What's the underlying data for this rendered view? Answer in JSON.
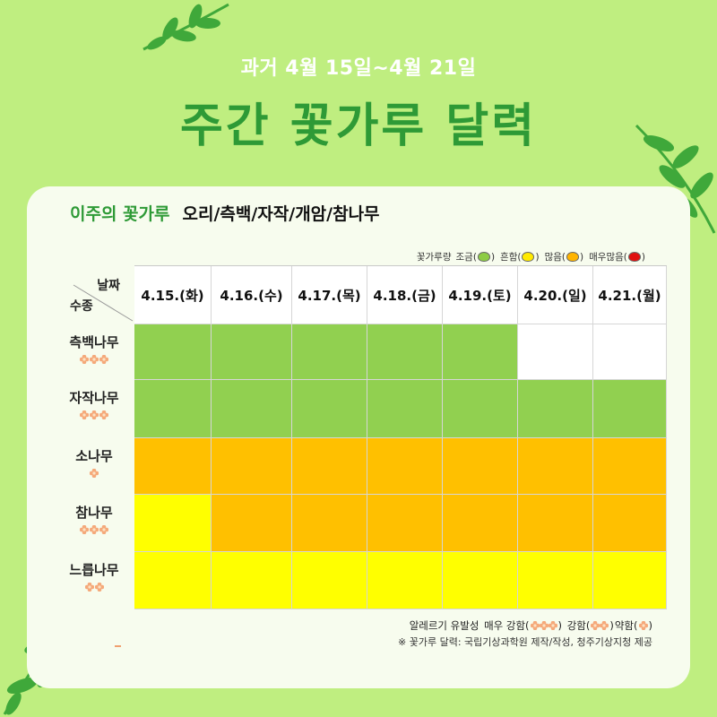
{
  "subtitle": "과거 4월 15일~4월 21일",
  "title": "주간 꽃가루 달력",
  "card": {
    "header_highlight": "이주의 꽃가루",
    "header_trees": "오리/측백/자작/개암/참나무"
  },
  "legend": {
    "label": "꽃가루량",
    "items": [
      {
        "label": "조금",
        "color": "#8dcc45"
      },
      {
        "label": "흔함",
        "color": "#ffea00"
      },
      {
        "label": "많음",
        "color": "#ffb400"
      },
      {
        "label": "매우많음",
        "color": "#e01010"
      }
    ]
  },
  "table": {
    "corner_top": "날짜",
    "corner_bottom": "수종",
    "dates": [
      "4.15.(화)",
      "4.16.(수)",
      "4.17.(목)",
      "4.18.(금)",
      "4.19.(토)",
      "4.20.(일)",
      "4.21.(월)"
    ],
    "level_colors": {
      "none": "#ffffff",
      "low": "#91d050",
      "common": "#ffff00",
      "high": "#ffc000"
    },
    "rows": [
      {
        "name": "측백나무",
        "allergy_flowers": 3,
        "levels": [
          "low",
          "low",
          "low",
          "low",
          "low",
          "none",
          "none"
        ]
      },
      {
        "name": "자작나무",
        "allergy_flowers": 3,
        "levels": [
          "low",
          "low",
          "low",
          "low",
          "low",
          "low",
          "low"
        ]
      },
      {
        "name": "소나무",
        "allergy_flowers": 1,
        "levels": [
          "high",
          "high",
          "high",
          "high",
          "high",
          "high",
          "high"
        ]
      },
      {
        "name": "참나무",
        "allergy_flowers": 3,
        "levels": [
          "common",
          "high",
          "high",
          "high",
          "high",
          "high",
          "high"
        ]
      },
      {
        "name": "느릅나무",
        "allergy_flowers": 2,
        "levels": [
          "common",
          "common",
          "common",
          "common",
          "common",
          "common",
          "common"
        ]
      }
    ]
  },
  "footer": {
    "allergy_prefix": "알레르기 유발성",
    "very_strong": "매우 강함(",
    "strong": "강함(",
    "weak": "약함(",
    "close": ")",
    "credit": "※ 꽃가루 달력: 국립기상과학원 제작/작성, 청주기상지청 제공"
  },
  "colors": {
    "background": "#bfee80",
    "title_green": "#2e9a36",
    "flower": "#f5a97a"
  }
}
